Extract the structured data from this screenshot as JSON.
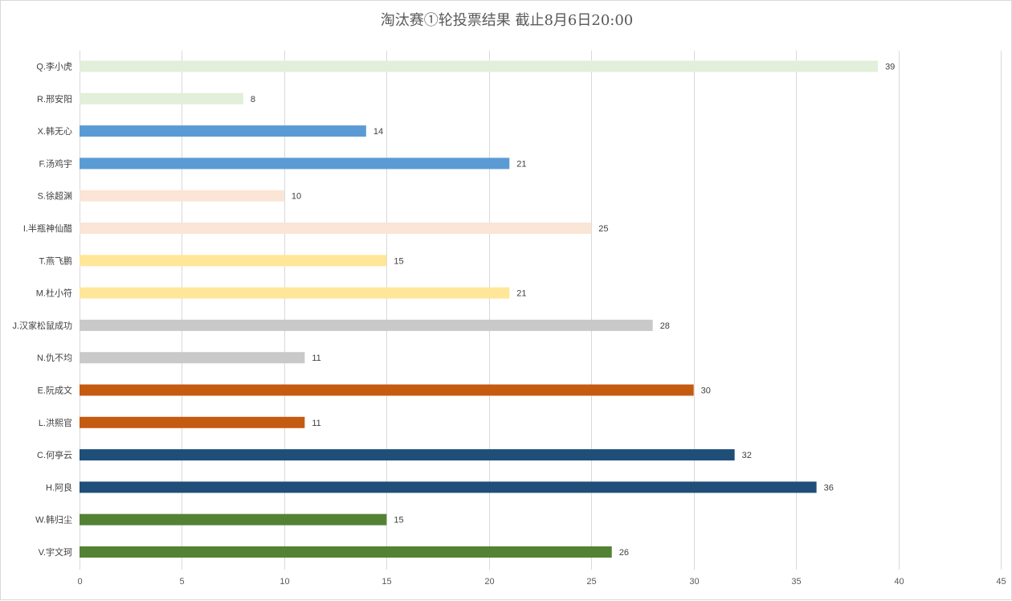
{
  "chart_data": {
    "type": "bar",
    "orientation": "horizontal",
    "title": "淘汰赛①轮投票结果  截止8月6日20:00",
    "categories": [
      "Q.李小虎",
      "R.邢安阳",
      "X.韩无心",
      "F.汤鸡宇",
      "S.徐超渊",
      "I.半瓶神仙醋",
      "T.燕飞鹏",
      "M.杜小符",
      "J.汉家松鼠成功",
      "N.仇不均",
      "E.阮成文",
      "L.洪熙官",
      "C.何亭云",
      "H.阿良",
      "W.韩归尘",
      "V.宇文珂"
    ],
    "values": [
      39,
      8,
      14,
      21,
      10,
      25,
      15,
      21,
      28,
      11,
      30,
      11,
      32,
      36,
      15,
      26
    ],
    "bar_colors": [
      "#e2efda",
      "#e2efda",
      "#5b9bd5",
      "#5b9bd5",
      "#fbe5d6",
      "#fbe5d6",
      "#ffe699",
      "#ffe699",
      "#c9c9c9",
      "#c9c9c9",
      "#c55a11",
      "#c55a11",
      "#1f4e79",
      "#1f4e79",
      "#548235",
      "#548235"
    ],
    "xlim": [
      0,
      45
    ],
    "x_ticks": [
      0,
      5,
      10,
      15,
      20,
      25,
      30,
      35,
      40,
      45
    ],
    "grid": true,
    "legend": "none",
    "data_labels": true
  }
}
